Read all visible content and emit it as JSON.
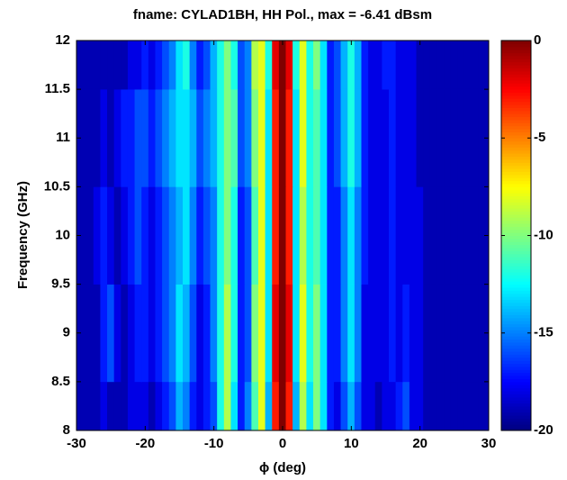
{
  "chart_data": {
    "type": "heatmap",
    "title": "fname: CYLAD1BH, HH Pol., max = -6.41 dBsm",
    "x_label": "ϕ (deg)",
    "y_label": "Frequency (GHz)",
    "x": [
      -30,
      -29,
      -28,
      -27,
      -26,
      -25,
      -24,
      -23,
      -22,
      -21,
      -20,
      -19,
      -18,
      -17,
      -16,
      -15,
      -14,
      -13,
      -12,
      -11,
      -10,
      -9,
      -8,
      -7,
      -6,
      -5,
      -4,
      -3,
      -2,
      -1,
      0,
      1,
      2,
      3,
      4,
      5,
      6,
      7,
      8,
      9,
      10,
      11,
      12,
      13,
      14,
      15,
      16,
      17,
      18,
      19,
      20,
      21,
      22,
      23,
      24,
      25,
      26,
      27,
      28,
      29,
      30
    ],
    "y": [
      8,
      9,
      10,
      11,
      12
    ],
    "z": [
      [
        -19,
        -19,
        -19,
        -19,
        -18,
        -19,
        -19,
        -19,
        -18,
        -18,
        -18,
        -19,
        -18,
        -17,
        -16,
        -14,
        -15,
        -17,
        -18,
        -17,
        -16,
        -12,
        -9,
        -13,
        -17,
        -15,
        -11,
        -8,
        -14,
        -3,
        0,
        -3,
        -14,
        -9,
        -13,
        -10,
        -13,
        -17,
        -18,
        -16,
        -14,
        -16,
        -18,
        -18,
        -19,
        -18,
        -18,
        -17,
        -16,
        -18,
        -18,
        -19,
        -19,
        -19,
        -19,
        -19,
        -19,
        -19,
        -19,
        -19,
        -19
      ],
      [
        -19,
        -19,
        -19,
        -19,
        -17,
        -16,
        -18,
        -19,
        -18,
        -17,
        -17,
        -18,
        -17,
        -16,
        -15,
        -13,
        -14,
        -16,
        -18,
        -17,
        -15,
        -12,
        -9,
        -12,
        -17,
        -16,
        -10,
        -8,
        -13,
        -2,
        0,
        -2,
        -13,
        -8,
        -12,
        -10,
        -13,
        -17,
        -17,
        -15,
        -13,
        -15,
        -18,
        -18,
        -18,
        -18,
        -17,
        -18,
        -17,
        -18,
        -18,
        -19,
        -19,
        -19,
        -19,
        -19,
        -19,
        -19,
        -19,
        -19,
        -19
      ],
      [
        -19,
        -19,
        -19,
        -18,
        -17,
        -18,
        -19,
        -18,
        -17,
        -16,
        -17,
        -18,
        -17,
        -16,
        -15,
        -14,
        -13,
        -15,
        -17,
        -16,
        -15,
        -12,
        -10,
        -12,
        -17,
        -16,
        -11,
        -8,
        -13,
        -3,
        0,
        -3,
        -13,
        -9,
        -12,
        -11,
        -13,
        -17,
        -17,
        -15,
        -13,
        -15,
        -17,
        -18,
        -18,
        -18,
        -17,
        -18,
        -18,
        -18,
        -18,
        -19,
        -19,
        -19,
        -19,
        -19,
        -19,
        -19,
        -19,
        -19,
        -19
      ],
      [
        -19,
        -19,
        -19,
        -19,
        -18,
        -19,
        -18,
        -17,
        -17,
        -16,
        -16,
        -17,
        -16,
        -15,
        -14,
        -13,
        -13,
        -14,
        -16,
        -15,
        -14,
        -12,
        -10,
        -11,
        -16,
        -15,
        -10,
        -8,
        -13,
        -3,
        0,
        -3,
        -13,
        -8,
        -12,
        -11,
        -13,
        -17,
        -16,
        -14,
        -12,
        -14,
        -17,
        -18,
        -18,
        -18,
        -17,
        -18,
        -18,
        -18,
        -19,
        -19,
        -19,
        -19,
        -19,
        -19,
        -19,
        -19,
        -19,
        -19,
        -19
      ],
      [
        -19,
        -19,
        -19,
        -19,
        -19,
        -19,
        -19,
        -19,
        -18,
        -18,
        -17,
        -18,
        -17,
        -16,
        -15,
        -13,
        -12,
        -15,
        -17,
        -16,
        -14,
        -12,
        -10,
        -12,
        -16,
        -15,
        -9,
        -8,
        -12,
        -2,
        0,
        -2,
        -12,
        -8,
        -12,
        -10,
        -13,
        -17,
        -16,
        -14,
        -12,
        -14,
        -17,
        -18,
        -18,
        -17,
        -17,
        -18,
        -18,
        -18,
        -19,
        -19,
        -19,
        -19,
        -19,
        -19,
        -19,
        -19,
        -19,
        -19,
        -19
      ]
    ],
    "xlim": [
      -30,
      30
    ],
    "xticks": [
      -30,
      -20,
      -10,
      0,
      10,
      20,
      30
    ],
    "ylim": [
      8,
      12
    ],
    "yticks": [
      8,
      8.5,
      9,
      9.5,
      10,
      10.5,
      11,
      11.5,
      12
    ],
    "clim": [
      -20,
      0
    ],
    "cticks": [
      -20,
      -15,
      -10,
      -5,
      0
    ],
    "colormap": "jet"
  }
}
